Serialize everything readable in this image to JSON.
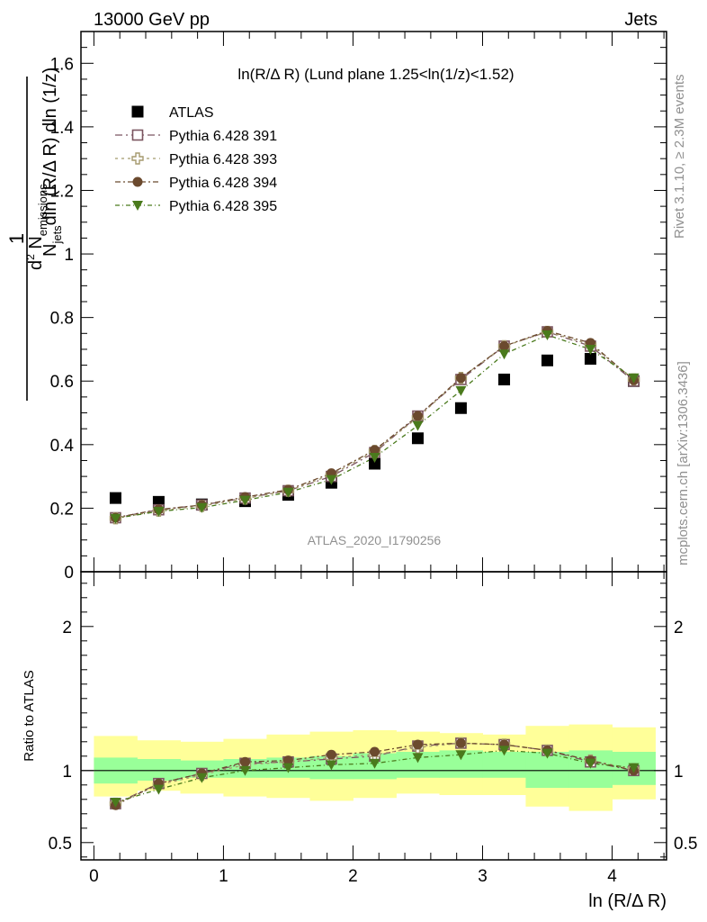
{
  "header": {
    "left": "13000 GeV pp",
    "right": "Jets"
  },
  "plot_title": "ln(R/Δ R) (Lund plane 1.25<ln(1/z)<1.52)",
  "analysis_label": "ATLAS_2020_I1790256",
  "side_labels": {
    "rivet": "Rivet 3.1.10, ≥ 2.3M events",
    "mcplots": "mcplots.cern.ch [arXiv:1306.3436]"
  },
  "axis": {
    "xlabel": "ln (R/Δ R)",
    "ylabel": "1/N_jets dN_emissions / dln(R/ΔR) dln(1/z)",
    "ylabel_parts": {
      "one": "1",
      "d2": "d",
      "two": "2",
      "nem": " N",
      "nem_sub": "emissions",
      "njets": "N",
      "njets_sub": "jets",
      "den": "dln (R/Δ R) dln (1/z)"
    },
    "ratio_ylabel": "Ratio to ATLAS"
  },
  "legend": [
    {
      "label": "ATLAS",
      "marker": "square-filled",
      "color": "#000000"
    },
    {
      "label": "Pythia 6.428 391",
      "marker": "square-open",
      "color": "#7b5560"
    },
    {
      "label": "Pythia 6.428 393",
      "marker": "cross-open",
      "color": "#a59a6e"
    },
    {
      "label": "Pythia 6.428 394",
      "marker": "circle-filled",
      "color": "#6b4a2e"
    },
    {
      "label": "Pythia 6.428 395",
      "marker": "triangle-down",
      "color": "#4a7a1c"
    }
  ],
  "chart_data": [
    {
      "type": "scatter",
      "panel": "main",
      "xlim": [
        -0.1,
        4.42
      ],
      "ylim": [
        0,
        1.7
      ],
      "x_ticks": [
        "0",
        "1",
        "2",
        "3",
        "4"
      ],
      "y_ticks": [
        "0",
        "0.2",
        "0.4",
        "0.6",
        "0.8",
        "1",
        "1.2",
        "1.4",
        "1.6"
      ],
      "x": [
        0.167,
        0.5,
        0.833,
        1.167,
        1.5,
        1.833,
        2.167,
        2.5,
        2.833,
        3.167,
        3.5,
        3.833,
        4.167
      ],
      "series": [
        {
          "name": "ATLAS",
          "values": [
            0.232,
            0.22,
            0.212,
            0.222,
            0.242,
            0.28,
            0.34,
            0.42,
            0.515,
            0.605,
            0.665,
            0.67,
            0.6
          ]
        },
        {
          "name": "Pythia 6.428 391",
          "values": [
            0.17,
            0.195,
            0.21,
            0.232,
            0.255,
            0.3,
            0.375,
            0.49,
            0.605,
            0.71,
            0.755,
            0.71,
            0.6
          ]
        },
        {
          "name": "Pythia 6.428 393",
          "values": [
            0.168,
            0.192,
            0.207,
            0.23,
            0.255,
            0.305,
            0.38,
            0.485,
            0.61,
            0.71,
            0.755,
            0.715,
            0.605
          ]
        },
        {
          "name": "Pythia 6.428 394",
          "values": [
            0.17,
            0.196,
            0.21,
            0.235,
            0.258,
            0.31,
            0.383,
            0.49,
            0.61,
            0.71,
            0.758,
            0.72,
            0.603
          ]
        },
        {
          "name": "Pythia 6.428 395",
          "values": [
            0.168,
            0.19,
            0.202,
            0.225,
            0.25,
            0.29,
            0.36,
            0.46,
            0.57,
            0.685,
            0.745,
            0.7,
            0.61
          ]
        }
      ]
    },
    {
      "type": "scatter",
      "panel": "ratio",
      "xlim": [
        -0.1,
        4.42
      ],
      "ylim": [
        0.38,
        2.38
      ],
      "y_ticks": [
        "0.5",
        "1",
        "2"
      ],
      "ylabel": "Ratio to ATLAS",
      "x": [
        0.167,
        0.5,
        0.833,
        1.167,
        1.5,
        1.833,
        2.167,
        2.5,
        2.833,
        3.167,
        3.5,
        3.833,
        4.167
      ],
      "bin_edges": [
        0,
        0.333,
        0.667,
        1.0,
        1.333,
        1.667,
        2.0,
        2.333,
        2.667,
        3.0,
        3.333,
        3.667,
        4.0,
        4.333
      ],
      "band_stat": [
        [
          0.91,
          1.09
        ],
        [
          0.93,
          1.08
        ],
        [
          0.95,
          1.07
        ],
        [
          0.95,
          1.08
        ],
        [
          0.95,
          1.09
        ],
        [
          0.94,
          1.1
        ],
        [
          0.94,
          1.12
        ],
        [
          0.95,
          1.13
        ],
        [
          0.95,
          1.14
        ],
        [
          0.95,
          1.13
        ],
        [
          0.88,
          1.13
        ],
        [
          0.88,
          1.14
        ],
        [
          0.9,
          1.13
        ]
      ],
      "band_total": [
        [
          0.82,
          1.24
        ],
        [
          0.86,
          1.21
        ],
        [
          0.84,
          1.2
        ],
        [
          0.82,
          1.22
        ],
        [
          0.81,
          1.25
        ],
        [
          0.79,
          1.27
        ],
        [
          0.81,
          1.28
        ],
        [
          0.84,
          1.27
        ],
        [
          0.83,
          1.26
        ],
        [
          0.83,
          1.25
        ],
        [
          0.75,
          1.31
        ],
        [
          0.72,
          1.32
        ],
        [
          0.8,
          1.3
        ]
      ],
      "series": [
        {
          "name": "Pythia 6.428 391",
          "values": [
            0.77,
            0.91,
            0.98,
            1.05,
            1.06,
            1.08,
            1.1,
            1.17,
            1.19,
            1.18,
            1.14,
            1.06,
            1.0
          ]
        },
        {
          "name": "Pythia 6.428 393",
          "values": [
            0.77,
            0.9,
            0.97,
            1.04,
            1.06,
            1.09,
            1.11,
            1.16,
            1.19,
            1.18,
            1.14,
            1.07,
            1.01
          ]
        },
        {
          "name": "Pythia 6.428 394",
          "values": [
            0.76,
            0.91,
            0.98,
            1.06,
            1.07,
            1.11,
            1.13,
            1.18,
            1.19,
            1.18,
            1.14,
            1.07,
            1.0
          ]
        },
        {
          "name": "Pythia 6.428 395",
          "values": [
            0.78,
            0.87,
            0.95,
            1.0,
            1.02,
            1.04,
            1.05,
            1.09,
            1.11,
            1.14,
            1.12,
            1.05,
            1.02
          ]
        }
      ]
    }
  ]
}
